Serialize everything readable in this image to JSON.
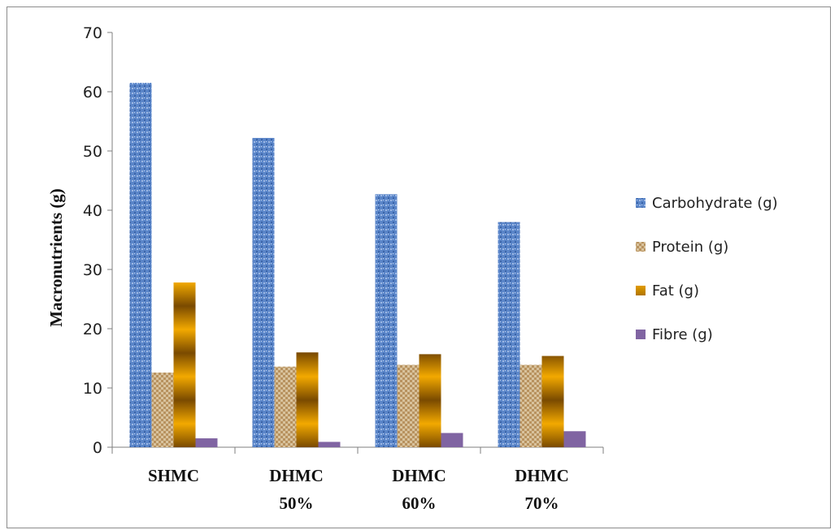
{
  "chart_data": {
    "type": "bar",
    "categories": [
      [
        "SHMC"
      ],
      [
        "DHMC",
        "50%"
      ],
      [
        "DHMC",
        "60%"
      ],
      [
        "DHMC",
        "70%"
      ]
    ],
    "series": [
      {
        "name": "Carbohydrate (g)",
        "values": [
          61.5,
          52.2,
          42.7,
          38.0
        ],
        "color": "#4f7fc6"
      },
      {
        "name": "Protein (g)",
        "values": [
          12.6,
          13.6,
          13.9,
          13.9
        ],
        "color": "#c9ad84"
      },
      {
        "name": "Fat (g)",
        "values": [
          27.8,
          16.0,
          15.7,
          15.4
        ],
        "color": "#e09a00"
      },
      {
        "name": "Fibre (g)",
        "values": [
          1.5,
          0.9,
          2.4,
          2.7
        ],
        "color": "#8064a2"
      }
    ],
    "ylabel": "Macronutrients  (g)",
    "xlabel": "",
    "ylim": [
      0,
      70
    ],
    "yticks": [
      0,
      10,
      20,
      30,
      40,
      50,
      60,
      70
    ],
    "grid": false,
    "legend_position": "right"
  }
}
